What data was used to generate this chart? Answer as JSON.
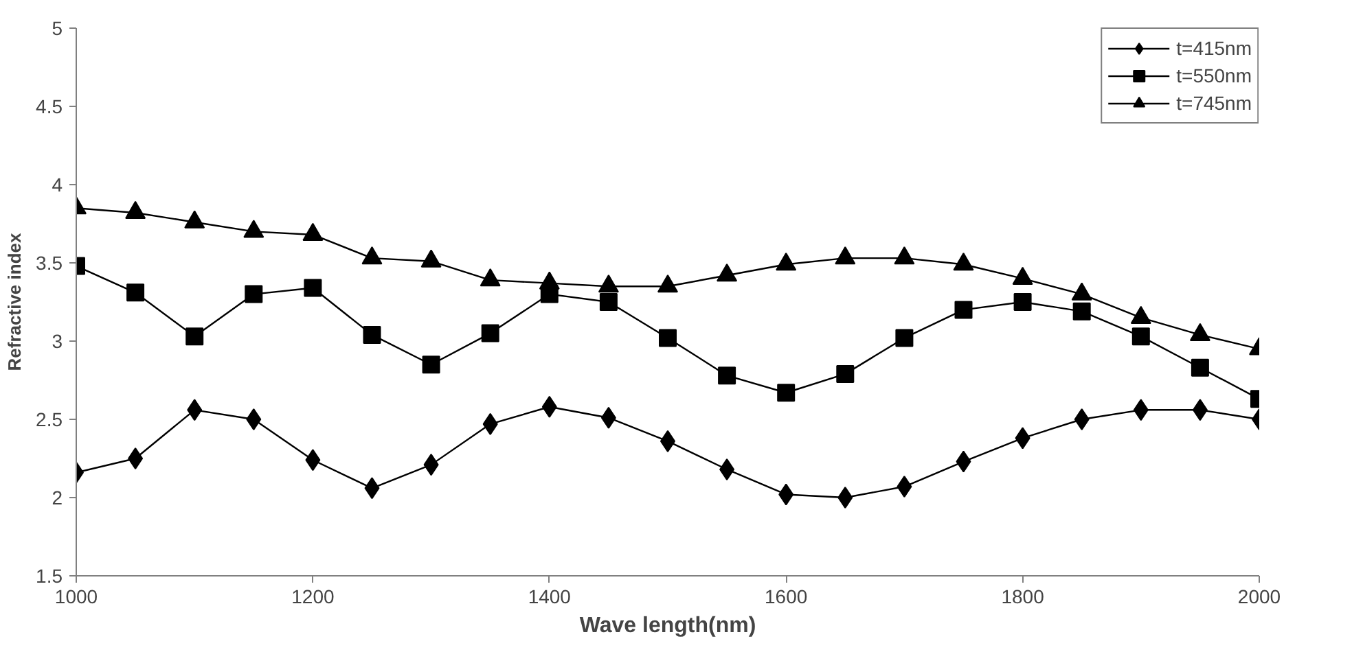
{
  "chart_data": {
    "type": "line",
    "xlabel": "Wave length(nm)",
    "ylabel": "Refractive index",
    "x": [
      1000,
      1050,
      1100,
      1150,
      1200,
      1250,
      1300,
      1350,
      1400,
      1450,
      1500,
      1550,
      1600,
      1650,
      1700,
      1750,
      1800,
      1850,
      1900,
      1950,
      2000
    ],
    "series": [
      {
        "name": "t=415nm",
        "color": "#000000",
        "marker": "diamond",
        "values": [
          2.16,
          2.25,
          2.56,
          2.5,
          2.24,
          2.06,
          2.21,
          2.47,
          2.58,
          2.51,
          2.36,
          2.18,
          2.02,
          2.0,
          2.07,
          2.23,
          2.38,
          2.5,
          2.56,
          2.56,
          2.5
        ]
      },
      {
        "name": "t=550nm",
        "color": "#000000",
        "marker": "square",
        "values": [
          3.48,
          3.31,
          3.03,
          3.3,
          3.34,
          3.04,
          2.85,
          3.05,
          3.3,
          3.25,
          3.02,
          2.78,
          2.67,
          2.79,
          3.02,
          3.2,
          3.25,
          3.19,
          3.03,
          2.83,
          2.63
        ]
      },
      {
        "name": "t=745nm",
        "color": "#000000",
        "marker": "triangle",
        "values": [
          3.85,
          3.82,
          3.76,
          3.7,
          3.68,
          3.53,
          3.51,
          3.39,
          3.37,
          3.35,
          3.35,
          3.42,
          3.49,
          3.53,
          3.53,
          3.49,
          3.4,
          3.3,
          3.15,
          3.04,
          2.95
        ]
      }
    ],
    "xlim": [
      1000,
      2000
    ],
    "xticks": [
      1000,
      1200,
      1400,
      1600,
      1800,
      2000
    ],
    "ylim": [
      1.5,
      5
    ],
    "yticks": [
      1.5,
      2,
      2.5,
      3,
      3.5,
      4,
      4.5,
      5
    ],
    "grid": false,
    "legend": "top right",
    "line_style": "solid"
  }
}
